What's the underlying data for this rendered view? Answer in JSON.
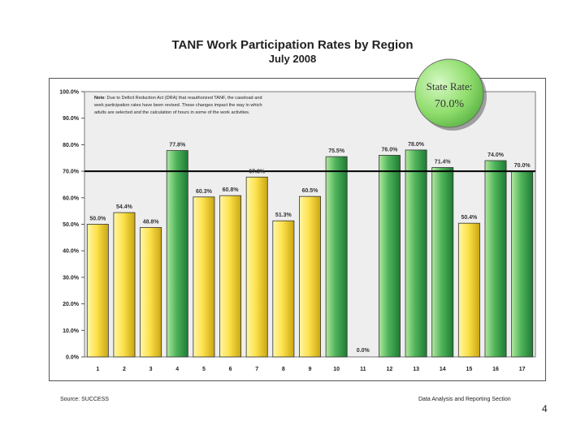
{
  "title": "TANF Work Participation Rates by Region",
  "subtitle": "July 2008",
  "note_label": "Note",
  "note_text": [
    ": Due to Deficit Reduction Act (DRA) that reauthorized TANF, the caseload and",
    "work participation rates have been revised.  These changes impact the way in which",
    "adults are selected and the calculation of hours in some of the work activities."
  ],
  "state_rate": {
    "label": "State Rate:",
    "value": "70.0%"
  },
  "footer": {
    "source": "Source: SUCCESS",
    "section": "Data Analysis and Reporting Section"
  },
  "page_number": "4",
  "colors": {
    "below": "#f2d53b",
    "above": "#3da054",
    "reference": "#000000",
    "badge": "#9be57a"
  },
  "chart_data": {
    "type": "bar",
    "categories": [
      "1",
      "2",
      "3",
      "4",
      "5",
      "6",
      "7",
      "8",
      "9",
      "10",
      "11",
      "12",
      "13",
      "14",
      "15",
      "16",
      "17"
    ],
    "values": [
      50.0,
      54.4,
      48.8,
      77.8,
      60.3,
      60.8,
      67.8,
      51.3,
      60.5,
      75.5,
      0.0,
      76.0,
      78.0,
      71.4,
      50.4,
      74.0,
      70.0
    ],
    "data_labels": [
      "50.0%",
      "54.4%",
      "48.8%",
      "77.8%",
      "60.3%",
      "60.8%",
      "67.8%",
      "51.3%",
      "60.5%",
      "75.5%",
      "0.0%",
      "76.0%",
      "78.0%",
      "71.4%",
      "50.4%",
      "74.0%",
      "70.0%"
    ],
    "ylim": [
      0,
      100
    ],
    "yticks": [
      "0.0%",
      "10.0%",
      "20.0%",
      "30.0%",
      "40.0%",
      "50.0%",
      "60.0%",
      "70.0%",
      "80.0%",
      "90.0%",
      "100.0%"
    ],
    "reference_line": 70.0,
    "xlabel": "",
    "ylabel": "",
    "grid": false
  }
}
